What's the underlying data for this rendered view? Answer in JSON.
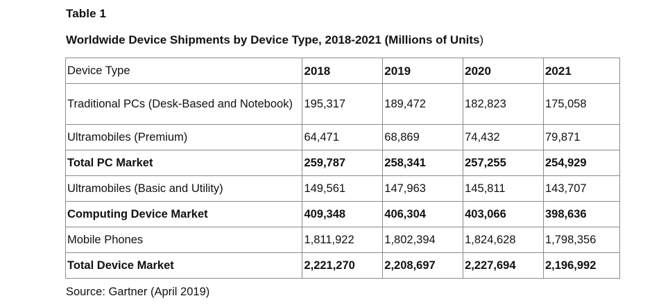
{
  "table_label": "Table 1",
  "caption": "Worldwide Device Shipments by Device Type, 2018-2021 (Millions of Units",
  "caption_close": ")",
  "header": [
    "Device Type",
    "2018",
    "2019",
    "2020",
    "2021"
  ],
  "rows": [
    {
      "label": "Traditional PCs (Desk-Based and Notebook)",
      "values": [
        "195,317",
        "189,472",
        "182,823",
        "175,058"
      ]
    },
    {
      "label": "Ultramobiles (Premium)",
      "values": [
        "64,471",
        "68,869",
        "74,432",
        "79,871"
      ]
    },
    {
      "label": "Total PC Market",
      "values": [
        "259,787",
        "258,341",
        "257,255",
        "254,929"
      ]
    },
    {
      "label": "Ultramobiles (Basic and Utility)",
      "values": [
        "149,561",
        "147,963",
        "145,811",
        "143,707"
      ]
    },
    {
      "label": "Computing Device Market",
      "values": [
        "409,348",
        "406,304",
        "403,066",
        "398,636"
      ]
    },
    {
      "label": "Mobile Phones",
      "values": [
        "1,811,922",
        "1,802,394",
        "1,824,628",
        "1,798,356"
      ]
    },
    {
      "label": "Total Device Market",
      "values": [
        "2,221,270",
        "2,208,697",
        "2,227,694",
        "2,196,992"
      ]
    }
  ],
  "source": "Source: Gartner (April 2019)"
}
